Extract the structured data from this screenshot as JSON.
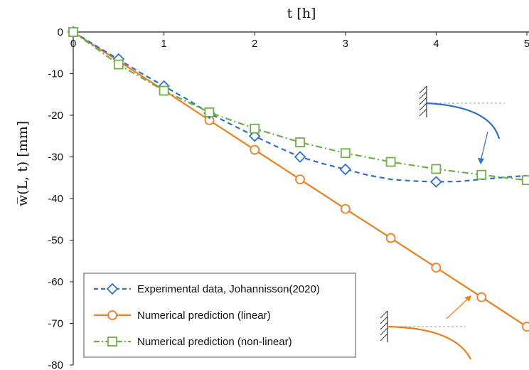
{
  "chart_data": {
    "type": "line",
    "xlabel": "t [h]",
    "ylabel": "w̅(L, t) [mm]",
    "xlim": [
      0,
      5
    ],
    "ylim": [
      -80,
      0
    ],
    "x_ticks": [
      "0",
      "1",
      "2",
      "3",
      "4",
      "5"
    ],
    "y_ticks": [
      "0",
      "-10",
      "-20",
      "-30",
      "-40",
      "-50",
      "-60",
      "-70",
      "-80"
    ],
    "grid": false,
    "legend_position": "bottom-left",
    "series": [
      {
        "name": "Experimental data, Johannisson(2020)",
        "color": "#2e6fc9",
        "line_style": "dashed",
        "marker": "diamond",
        "x": [
          0,
          0.5,
          1.0,
          1.5,
          2.0,
          2.5,
          3.0,
          4.0
        ],
        "y": [
          0,
          -6.5,
          -13.0,
          -19.5,
          -25.0,
          -30.0,
          -33.0,
          -36.0
        ],
        "curve_x": [
          0,
          0.25,
          0.5,
          0.75,
          1.0,
          1.25,
          1.5,
          1.75,
          2.0,
          2.25,
          2.5,
          2.75,
          3.0,
          3.25,
          3.5,
          3.75,
          4.0,
          4.25,
          4.5,
          4.75,
          5.0
        ],
        "curve_y": [
          0,
          -3.3,
          -6.6,
          -9.9,
          -13.0,
          -16.1,
          -19.5,
          -22.3,
          -25.0,
          -27.6,
          -30.0,
          -31.6,
          -33.0,
          -34.4,
          -35.4,
          -35.8,
          -36.0,
          -35.9,
          -35.4,
          -34.9,
          -34.5
        ]
      },
      {
        "name": "Numerical prediction (linear)",
        "color": "#f07f20",
        "line_style": "solid",
        "marker": "circle",
        "x": [
          0,
          0.5,
          1.0,
          1.5,
          2.0,
          2.5,
          3.0,
          3.5,
          4.0,
          4.5,
          5.0
        ],
        "y": [
          0,
          -7.0,
          -14.0,
          -21.2,
          -28.3,
          -35.4,
          -42.5,
          -49.5,
          -56.6,
          -63.7,
          -70.8
        ]
      },
      {
        "name": "Numerical prediction (non-linear)",
        "color": "#6fae47",
        "line_style": "dash-dot",
        "marker": "square",
        "x": [
          0,
          0.5,
          1.0,
          1.5,
          2.0,
          2.5,
          3.0,
          3.5,
          4.0,
          4.5,
          5.0
        ],
        "y": [
          0,
          -7.8,
          -14.1,
          -19.3,
          -23.2,
          -26.5,
          -29.1,
          -31.2,
          -32.9,
          -34.3,
          -35.6
        ]
      }
    ]
  }
}
